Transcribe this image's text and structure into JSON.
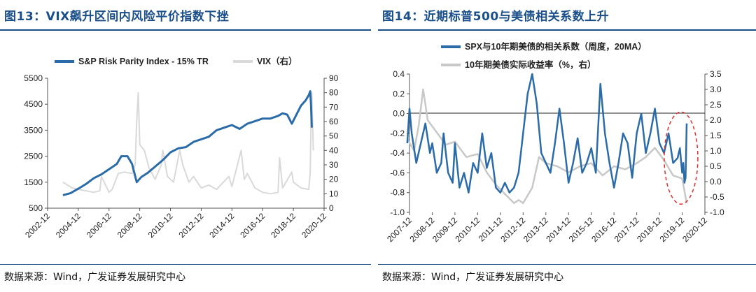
{
  "left": {
    "title": "图13：VIX飙升区间内风险平价指数下挫",
    "source": "数据来源：Wind，广发证券发展研究中心",
    "chart_data": {
      "type": "line",
      "title": "",
      "x_ticks": [
        "2002-12",
        "2004-12",
        "2006-12",
        "2008-12",
        "2010-12",
        "2012-12",
        "2014-12",
        "2016-12",
        "2018-12",
        "2020-12"
      ],
      "y_left": {
        "lim": [
          500,
          5500
        ],
        "ticks": [
          500,
          1500,
          2500,
          3500,
          4500,
          5500
        ]
      },
      "y_right": {
        "lim": [
          0,
          90
        ],
        "ticks": [
          0,
          10,
          20,
          30,
          40,
          50,
          60,
          70,
          80,
          90
        ]
      },
      "legend_position": "top",
      "colors": {
        "index": "#2b6ca8",
        "vix": "#d9d9d9"
      },
      "series": [
        {
          "name": "S&P Risk Parity Index - 15% TR",
          "axis": "left",
          "x": [
            2004.0,
            2004.5,
            2005.0,
            2005.5,
            2006.0,
            2006.5,
            2007.0,
            2007.5,
            2007.8,
            2008.2,
            2008.5,
            2008.8,
            2009.1,
            2009.5,
            2010.0,
            2010.5,
            2011.0,
            2011.5,
            2012.0,
            2012.5,
            2013.0,
            2013.5,
            2014.0,
            2014.5,
            2015.0,
            2015.5,
            2016.0,
            2016.5,
            2017.0,
            2017.5,
            2018.0,
            2018.3,
            2018.6,
            2018.9,
            2019.2,
            2019.5,
            2019.8,
            2020.0,
            2020.1,
            2020.15,
            2020.2
          ],
          "values": [
            1000,
            1080,
            1250,
            1430,
            1650,
            1800,
            2000,
            2200,
            2500,
            2500,
            2200,
            1500,
            1700,
            1850,
            2100,
            2350,
            2650,
            2800,
            2850,
            3050,
            3150,
            3250,
            3500,
            3600,
            3700,
            3550,
            3750,
            3850,
            3950,
            3950,
            4050,
            4150,
            4100,
            3750,
            4100,
            4450,
            4650,
            4850,
            5000,
            4500,
            3600
          ]
        },
        {
          "name": "VIX（右）",
          "axis": "right",
          "x": [
            2004.0,
            2004.3,
            2004.6,
            2005.0,
            2005.5,
            2006.0,
            2006.4,
            2006.5,
            2007.0,
            2007.2,
            2007.6,
            2008.0,
            2008.5,
            2008.7,
            2008.8,
            2008.9,
            2009.0,
            2009.3,
            2009.6,
            2010.0,
            2010.4,
            2010.5,
            2010.8,
            2011.2,
            2011.6,
            2011.8,
            2012.2,
            2012.5,
            2013.0,
            2013.5,
            2014.0,
            2014.8,
            2015.0,
            2015.6,
            2015.8,
            2016.0,
            2016.5,
            2017.0,
            2017.5,
            2018.0,
            2018.1,
            2018.3,
            2018.9,
            2019.0,
            2019.5,
            2020.0,
            2020.1,
            2020.15,
            2020.2,
            2020.3
          ],
          "values": [
            18,
            16,
            14,
            13,
            12,
            11,
            12,
            22,
            11,
            13,
            24,
            25,
            24,
            30,
            60,
            80,
            44,
            40,
            28,
            20,
            30,
            40,
            22,
            18,
            40,
            30,
            18,
            22,
            14,
            16,
            13,
            22,
            15,
            40,
            20,
            24,
            14,
            11,
            10,
            11,
            35,
            14,
            25,
            18,
            14,
            13,
            25,
            60,
            80,
            40
          ]
        }
      ]
    }
  },
  "right": {
    "title": "图14：近期标普500与美债相关系数上升",
    "source": "数据来源：Wind，广发证券发展研究中心",
    "chart_data": {
      "type": "line",
      "title": "",
      "x_ticks": [
        "2007-12",
        "2008-12",
        "2009-12",
        "2010-12",
        "2011-12",
        "2012-12",
        "2013-12",
        "2014-12",
        "2015-12",
        "2016-12",
        "2017-12",
        "2018-12",
        "2019-12",
        "2020-12"
      ],
      "y_left": {
        "lim": [
          -1.0,
          0.4
        ],
        "ticks": [
          -1.0,
          -0.8,
          -0.6,
          -0.4,
          -0.2,
          0.0,
          0.2,
          0.4
        ]
      },
      "y_right": {
        "lim": [
          -1.0,
          3.5
        ],
        "ticks": [
          -1.0,
          -0.5,
          0.0,
          0.5,
          1.0,
          1.5,
          2.0,
          2.5,
          3.0,
          3.5
        ]
      },
      "legend_position": "top",
      "colors": {
        "corr": "#2b6ca8",
        "yield": "#c8c8c8",
        "highlight": "#e03030"
      },
      "series": [
        {
          "name": "SPX与10年期美债的相关系数（周度，20MA）",
          "axis": "left",
          "x": [
            2007.9,
            2008.0,
            2008.1,
            2008.3,
            2008.5,
            2008.7,
            2008.9,
            2009.0,
            2009.2,
            2009.4,
            2009.5,
            2009.7,
            2009.9,
            2010.0,
            2010.2,
            2010.4,
            2010.6,
            2010.8,
            2011.0,
            2011.2,
            2011.4,
            2011.6,
            2011.8,
            2012.0,
            2012.2,
            2012.4,
            2012.6,
            2012.8,
            2012.9,
            2013.0,
            2013.2,
            2013.4,
            2013.6,
            2013.8,
            2014.0,
            2014.2,
            2014.4,
            2014.6,
            2014.8,
            2015.0,
            2015.2,
            2015.4,
            2015.6,
            2015.8,
            2016.0,
            2016.2,
            2016.4,
            2016.6,
            2016.8,
            2017.0,
            2017.2,
            2017.4,
            2017.6,
            2017.8,
            2018.0,
            2018.2,
            2018.4,
            2018.6,
            2018.8,
            2019.0,
            2019.2,
            2019.4,
            2019.6,
            2019.8,
            2019.9,
            2020.0,
            2020.05,
            2020.1,
            2020.15,
            2020.2
          ],
          "values": [
            -0.3,
            0.05,
            -0.2,
            -0.5,
            -0.3,
            -0.1,
            -0.4,
            -0.3,
            -0.6,
            -0.5,
            -0.2,
            -0.6,
            -0.7,
            -0.3,
            -0.75,
            -0.6,
            -0.8,
            -0.5,
            -0.6,
            -0.2,
            -0.55,
            -0.4,
            -0.75,
            -0.8,
            -0.7,
            -0.8,
            -0.75,
            -0.6,
            -0.4,
            -0.2,
            0.2,
            0.4,
            0.1,
            -0.4,
            -0.5,
            -0.6,
            -0.3,
            0.05,
            -0.3,
            -0.7,
            -0.5,
            -0.25,
            -0.6,
            -0.5,
            -0.35,
            -0.6,
            0.3,
            -0.2,
            -0.5,
            -0.75,
            -0.5,
            -0.2,
            -0.3,
            -0.65,
            -0.2,
            0.0,
            -0.4,
            -0.2,
            0.05,
            -0.3,
            -0.4,
            -0.2,
            -0.5,
            -0.45,
            -0.35,
            -0.6,
            -0.5,
            -0.7,
            -0.65,
            -0.1
          ]
        },
        {
          "name": "10年期美债实际收益率（%，右）",
          "axis": "right",
          "x": [
            2007.9,
            2008.2,
            2008.4,
            2008.6,
            2008.8,
            2009.0,
            2009.3,
            2009.6,
            2010.0,
            2010.5,
            2011.0,
            2011.4,
            2011.8,
            2012.2,
            2012.6,
            2012.8,
            2013.0,
            2013.4,
            2013.7,
            2014.0,
            2014.5,
            2015.0,
            2015.5,
            2016.0,
            2016.5,
            2017.0,
            2017.5,
            2018.0,
            2018.4,
            2018.8,
            2019.2,
            2019.6,
            2020.0,
            2020.1,
            2020.15,
            2020.2
          ],
          "values": [
            1.4,
            1.0,
            1.8,
            3.0,
            2.0,
            1.8,
            1.5,
            1.2,
            1.3,
            0.8,
            0.9,
            0.3,
            -0.1,
            -0.4,
            -0.7,
            -0.6,
            -0.7,
            -0.2,
            0.8,
            0.6,
            0.5,
            0.3,
            0.5,
            0.6,
            0.2,
            0.5,
            0.4,
            0.6,
            0.8,
            1.1,
            0.7,
            0.2,
            0.1,
            -0.3,
            -0.5,
            -0.7
          ]
        }
      ]
    }
  }
}
